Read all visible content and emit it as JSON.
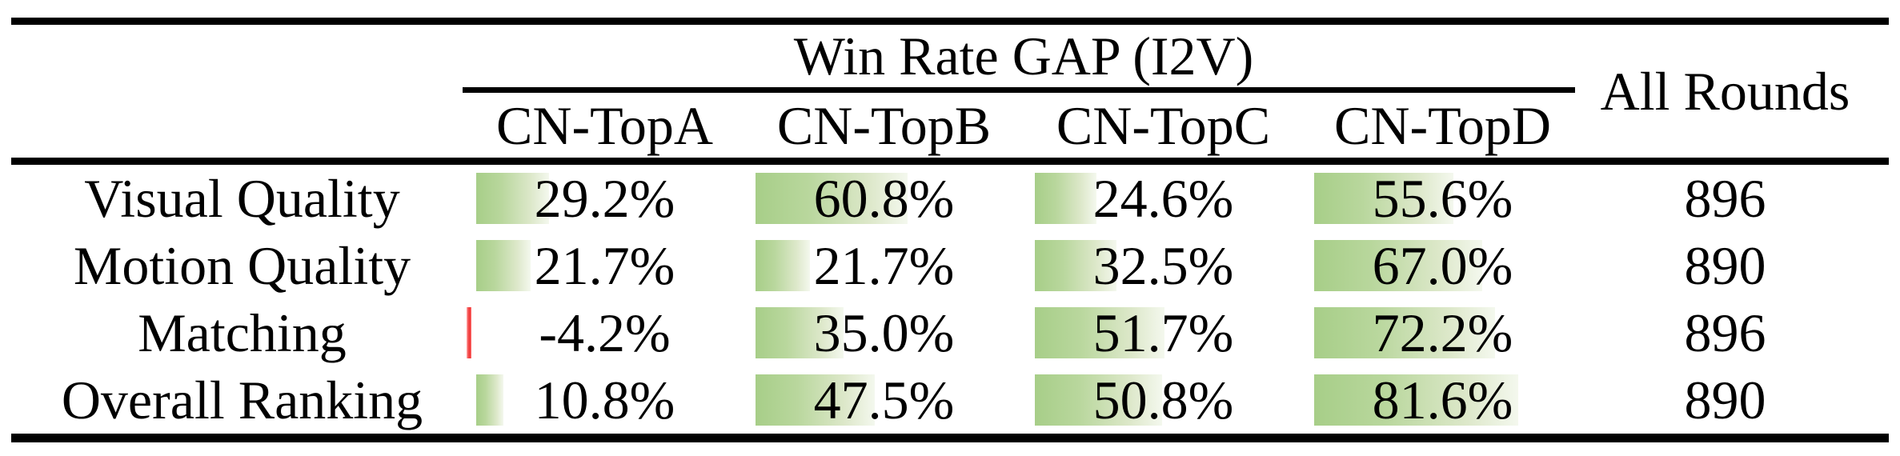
{
  "table": {
    "group_header": "Win Rate GAP (I2V)",
    "all_rounds_header": "All Rounds",
    "columns": [
      "CN-TopA",
      "CN-TopB",
      "CN-TopC",
      "CN-TopD"
    ],
    "rows": [
      {
        "label": "Visual Quality",
        "values": [
          29.2,
          60.8,
          24.6,
          55.6
        ],
        "display": [
          "29.2%",
          "60.8%",
          "24.6%",
          "55.6%"
        ],
        "all_rounds": "896"
      },
      {
        "label": "Motion Quality",
        "values": [
          21.7,
          21.7,
          32.5,
          67.0
        ],
        "display": [
          "21.7%",
          "21.7%",
          "32.5%",
          "67.0%"
        ],
        "all_rounds": "890"
      },
      {
        "label": "Matching",
        "values": [
          -4.2,
          35.0,
          51.7,
          72.2
        ],
        "display": [
          "-4.2%",
          "35.0%",
          "51.7%",
          "72.2%"
        ],
        "all_rounds": "896"
      },
      {
        "label": "Overall Ranking",
        "values": [
          10.8,
          47.5,
          50.8,
          81.6
        ],
        "display": [
          "10.8%",
          "47.5%",
          "50.8%",
          "81.6%"
        ],
        "all_rounds": "890"
      }
    ],
    "colors": {
      "bar_positive_start": "#a7ce88",
      "bar_positive_end": "#f4f8ee",
      "bar_negative": "#f23d3d",
      "text": "#000000",
      "rule": "#000000"
    }
  },
  "chart_data": {
    "type": "table",
    "title": "Win Rate GAP (I2V)",
    "categories": [
      "Visual Quality",
      "Motion Quality",
      "Matching",
      "Overall Ranking"
    ],
    "series": [
      {
        "name": "CN-TopA",
        "values": [
          29.2,
          21.7,
          -4.2,
          10.8
        ]
      },
      {
        "name": "CN-TopB",
        "values": [
          60.8,
          21.7,
          35.0,
          47.5
        ]
      },
      {
        "name": "CN-TopC",
        "values": [
          24.6,
          32.5,
          51.7,
          50.8
        ]
      },
      {
        "name": "CN-TopD",
        "values": [
          55.6,
          67.0,
          72.2,
          81.6
        ]
      }
    ],
    "all_rounds": [
      896,
      890,
      896,
      890
    ],
    "unit": "%",
    "bar_scale_max": 100,
    "layout": "percent cells have left-anchored green gradient data bars; negative value shown as thin red bar"
  }
}
